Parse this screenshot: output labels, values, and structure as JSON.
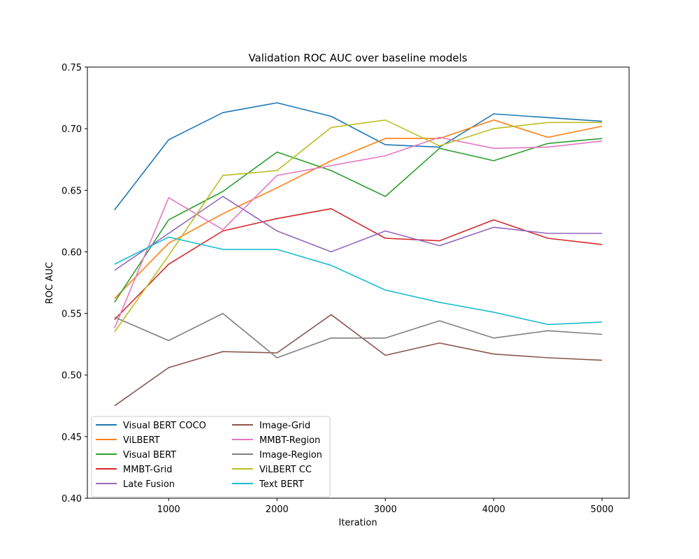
{
  "chart_data": {
    "type": "line",
    "title": "Validation ROC AUC over baseline models",
    "xlabel": "Iteration",
    "ylabel": "ROC AUC",
    "xlim": [
      250,
      5250
    ],
    "ylim": [
      0.4,
      0.75
    ],
    "x": [
      500,
      1000,
      1500,
      2000,
      2500,
      3000,
      3500,
      4000,
      4500,
      5000
    ],
    "xticks": [
      1000,
      2000,
      3000,
      4000,
      5000
    ],
    "xtick_labels": [
      "1000",
      "2000",
      "3000",
      "4000",
      "5000"
    ],
    "yticks": [
      0.4,
      0.45,
      0.5,
      0.55,
      0.6,
      0.65,
      0.7,
      0.75
    ],
    "ytick_labels": [
      "0.40",
      "0.45",
      "0.50",
      "0.55",
      "0.60",
      "0.65",
      "0.70",
      "0.75"
    ],
    "grid": false,
    "legend_position": "lower-left",
    "legend_columns": 2,
    "series": [
      {
        "name": "Visual BERT COCO",
        "color": "#1f77b4",
        "values": [
          0.634,
          0.691,
          0.713,
          0.721,
          0.71,
          0.687,
          0.685,
          0.712,
          0.709,
          0.706
        ]
      },
      {
        "name": "ViLBERT",
        "color": "#ff7f0e",
        "values": [
          0.562,
          0.607,
          0.631,
          0.652,
          0.674,
          0.692,
          0.692,
          0.707,
          0.693,
          0.702
        ]
      },
      {
        "name": "Visual BERT",
        "color": "#2ca02c",
        "values": [
          0.559,
          0.626,
          0.649,
          0.681,
          0.666,
          0.645,
          0.684,
          0.674,
          0.688,
          0.692
        ]
      },
      {
        "name": "MMBT-Grid",
        "color": "#d62728",
        "values": [
          0.545,
          0.59,
          0.617,
          0.627,
          0.635,
          0.611,
          0.609,
          0.626,
          0.611,
          0.606
        ]
      },
      {
        "name": "Late Fusion",
        "color": "#9467bd",
        "values": [
          0.585,
          0.615,
          0.645,
          0.617,
          0.6,
          0.617,
          0.605,
          0.62,
          0.615,
          0.615
        ]
      },
      {
        "name": "Image-Grid",
        "color": "#8c564b",
        "values": [
          0.475,
          0.506,
          0.519,
          0.518,
          0.549,
          0.516,
          0.526,
          0.517,
          0.514,
          0.512
        ]
      },
      {
        "name": "MMBT-Region",
        "color": "#e377c2",
        "values": [
          0.538,
          0.644,
          0.618,
          0.662,
          0.67,
          0.678,
          0.693,
          0.684,
          0.685,
          0.69
        ]
      },
      {
        "name": "Image-Region",
        "color": "#7f7f7f",
        "values": [
          0.547,
          0.528,
          0.55,
          0.514,
          0.53,
          0.53,
          0.544,
          0.53,
          0.536,
          0.533
        ]
      },
      {
        "name": "ViLBERT CC",
        "color": "#bcbd22",
        "values": [
          0.535,
          0.597,
          0.662,
          0.666,
          0.701,
          0.707,
          0.686,
          0.7,
          0.705,
          0.705
        ]
      },
      {
        "name": "Text BERT",
        "color": "#17becf",
        "values": [
          0.59,
          0.612,
          0.602,
          0.602,
          0.589,
          0.569,
          0.559,
          0.551,
          0.541,
          0.543
        ]
      }
    ]
  }
}
